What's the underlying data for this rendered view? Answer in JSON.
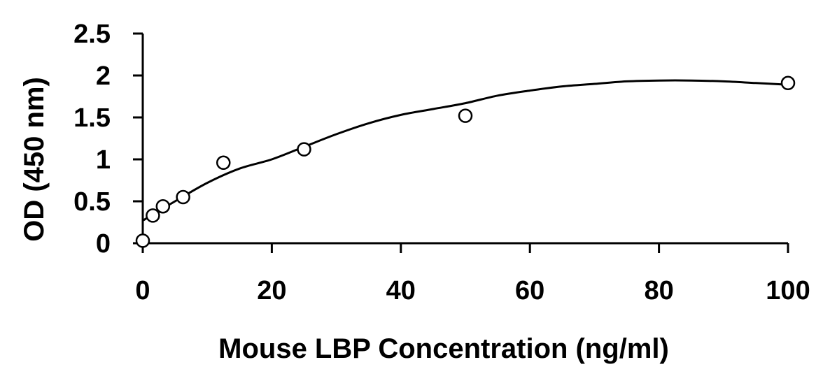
{
  "chart_data": {
    "type": "scatter",
    "xlabel": "Mouse LBP Concentration (ng/ml)",
    "ylabel": "OD (450 nm)",
    "xlim": [
      0,
      100
    ],
    "ylim": [
      0,
      2.5
    ],
    "x_ticks": [
      0,
      20,
      40,
      60,
      80,
      100
    ],
    "y_ticks": [
      0,
      0.5,
      1,
      1.5,
      2,
      2.5
    ],
    "x_tick_labels": [
      "0",
      "20",
      "40",
      "60",
      "80",
      "100"
    ],
    "y_tick_labels": [
      "0",
      "0.5",
      "1",
      "1.5",
      "2",
      "2.5"
    ],
    "grid": false,
    "legend": "none",
    "series": [
      {
        "x": [
          0,
          1.5625,
          3.125,
          6.25,
          12.5,
          25,
          50,
          100
        ],
        "y": [
          0.03,
          0.33,
          0.44,
          0.55,
          0.96,
          1.12,
          1.52,
          1.91
        ]
      }
    ],
    "trendline": {
      "type": "polynomial",
      "x": [
        0,
        5,
        10,
        15,
        20,
        25,
        30,
        35,
        40,
        45,
        50,
        55,
        60,
        65,
        70,
        75,
        80,
        85,
        90,
        95,
        100
      ],
      "y": [
        0.27,
        0.5,
        0.72,
        0.89,
        1.0,
        1.15,
        1.3,
        1.43,
        1.53,
        1.6,
        1.67,
        1.76,
        1.82,
        1.87,
        1.9,
        1.93,
        1.94,
        1.94,
        1.93,
        1.91,
        1.89
      ]
    }
  }
}
